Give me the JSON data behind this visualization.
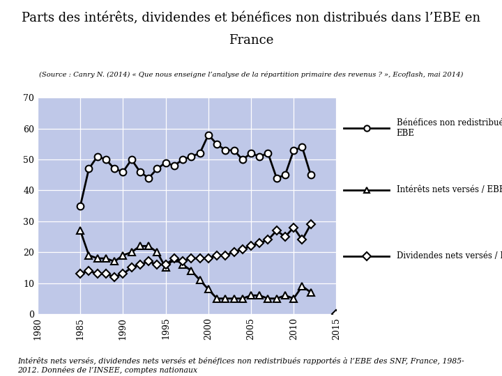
{
  "title_line1": "Parts des intérêts, dividendes et bénéfices non distribués dans l’EBE en",
  "title_line2": "France",
  "source_text": "(Source : Canry N. (2014) « Que nous enseigne l’analyse de la répartition primaire des revenus ? », Ecoflash, mai 2014)",
  "footnote": "Intérêts nets versés, dividendes nets versés et bénéfices non redistribués rapportés à l’EBE des SNF, France, 1985-\n2012. Données de l’INSEE, comptes nationaux",
  "header_bg": "#cdc8dc",
  "plot_bg": "#bfc8e8",
  "fig_bg": "#ffffff",
  "ylim": [
    0,
    70
  ],
  "xlim": [
    1980,
    2015
  ],
  "yticks": [
    0,
    10,
    20,
    30,
    40,
    50,
    60,
    70
  ],
  "xticks": [
    1980,
    1985,
    1990,
    1995,
    2000,
    2005,
    2010,
    2015
  ],
  "benefices": {
    "years": [
      1985,
      1986,
      1987,
      1988,
      1989,
      1990,
      1991,
      1992,
      1993,
      1994,
      1995,
      1996,
      1997,
      1998,
      1999,
      2000,
      2001,
      2002,
      2003,
      2004,
      2005,
      2006,
      2007,
      2008,
      2009,
      2010,
      2011,
      2012
    ],
    "values": [
      35,
      47,
      51,
      50,
      47,
      46,
      50,
      46,
      44,
      47,
      49,
      48,
      50,
      51,
      52,
      58,
      55,
      53,
      53,
      50,
      52,
      51,
      52,
      44,
      45,
      53,
      54,
      45
    ],
    "label": "Bénéfices non redistribués /\nEBE",
    "marker": "o",
    "markersize": 7,
    "lw": 2
  },
  "interets": {
    "years": [
      1985,
      1986,
      1987,
      1988,
      1989,
      1990,
      1991,
      1992,
      1993,
      1994,
      1995,
      1996,
      1997,
      1998,
      1999,
      2000,
      2001,
      2002,
      2003,
      2004,
      2005,
      2006,
      2007,
      2008,
      2009,
      2010,
      2011,
      2012
    ],
    "values": [
      27,
      19,
      18,
      18,
      17,
      19,
      20,
      22,
      22,
      20,
      15,
      18,
      16,
      14,
      11,
      8,
      5,
      5,
      5,
      5,
      6,
      6,
      5,
      5,
      6,
      5,
      9,
      7
    ],
    "label": "Intérêts nets versés / EBE",
    "marker": "^",
    "markersize": 7,
    "lw": 2
  },
  "dividendes": {
    "years": [
      1985,
      1986,
      1987,
      1988,
      1989,
      1990,
      1991,
      1992,
      1993,
      1994,
      1995,
      1996,
      1997,
      1998,
      1999,
      2000,
      2001,
      2002,
      2003,
      2004,
      2005,
      2006,
      2007,
      2008,
      2009,
      2010,
      2011,
      2012
    ],
    "values": [
      13,
      14,
      13,
      13,
      12,
      13,
      15,
      16,
      17,
      16,
      16,
      18,
      17,
      18,
      18,
      18,
      19,
      19,
      20,
      21,
      22,
      23,
      24,
      27,
      25,
      28,
      24,
      29
    ],
    "label": "Dividendes nets versés / EBE",
    "marker": "D",
    "markersize": 6,
    "lw": 2
  },
  "lone_diamond_year": 2015,
  "lone_diamond_value": 0
}
